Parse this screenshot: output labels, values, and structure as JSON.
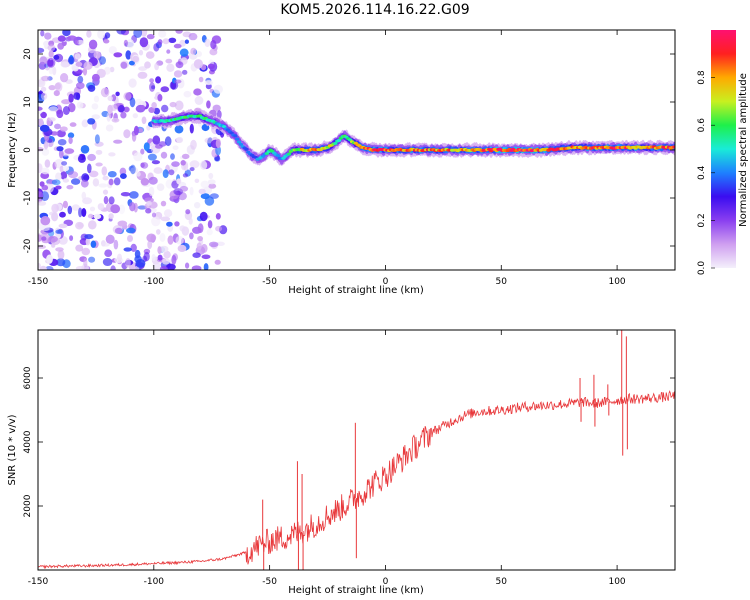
{
  "title": "KOM5.2026.114.16.22.G09",
  "colors": {
    "snr_line": "#e8383b",
    "colormap": [
      "#f4f0fb",
      "#cf9ff0",
      "#8a3ff0",
      "#3a0df0",
      "#1e80ff",
      "#19ecd8",
      "#1ef04a",
      "#c8f020",
      "#ffaa00",
      "#ff2020",
      "#ff1070"
    ]
  },
  "chart_data": [
    {
      "type": "heatmap",
      "title": "",
      "xlabel": "Height of straight line (km)",
      "ylabel": "Frequency (Hz)",
      "xlim": [
        -150,
        125
      ],
      "ylim": [
        -25,
        25
      ],
      "xticks": [
        -150,
        -100,
        -50,
        0,
        50,
        100
      ],
      "yticks": [
        -20,
        -10,
        0,
        10,
        20
      ],
      "colorbar": {
        "label": "Normalized spectral amplitude",
        "range": [
          0.0,
          1.0
        ],
        "ticks": [
          0.0,
          0.2,
          0.4,
          0.6,
          0.8
        ]
      },
      "signal_track": {
        "x": [
          -100,
          -95,
          -90,
          -85,
          -80,
          -75,
          -70,
          -65,
          -62,
          -58,
          -55,
          -52,
          -50,
          -47,
          -45,
          -42,
          -40,
          -35,
          -30,
          -25,
          -20,
          -18,
          -15,
          -10,
          -5,
          0,
          10,
          20,
          30,
          40,
          50,
          60,
          70,
          80,
          90,
          100,
          110,
          120,
          125
        ],
        "freq": [
          6,
          6,
          6.5,
          7,
          7,
          6,
          5,
          3,
          1,
          -1,
          -2,
          -1,
          0,
          -1,
          -2,
          -1,
          0,
          0,
          0,
          0.5,
          2,
          3,
          2,
          0.5,
          0,
          0,
          0,
          0,
          0,
          0,
          0,
          0,
          0,
          0.5,
          0.5,
          0.5,
          0.5,
          0.5,
          0.5
        ],
        "amplitude": [
          0.45,
          0.5,
          0.55,
          0.55,
          0.6,
          0.5,
          0.45,
          0.4,
          0.4,
          0.35,
          0.4,
          0.45,
          0.55,
          0.45,
          0.4,
          0.5,
          0.6,
          0.75,
          0.8,
          0.7,
          0.55,
          0.55,
          0.6,
          0.8,
          0.9,
          0.85,
          0.85,
          0.8,
          0.8,
          0.8,
          0.95,
          0.95,
          0.85,
          0.8,
          0.85,
          0.9,
          0.8,
          0.85,
          0.85
        ]
      },
      "noise_region": {
        "x_range": [
          -150,
          -70
        ],
        "freq_range": [
          -25,
          25
        ],
        "amplitude_range": [
          0.0,
          0.4
        ]
      }
    },
    {
      "type": "line",
      "title": "",
      "xlabel": "Height of straight line (km)",
      "ylabel": "SNR (10 * v/v)",
      "xlim": [
        -150,
        125
      ],
      "ylim": [
        0,
        7500
      ],
      "xticks": [
        -150,
        -100,
        -50,
        0,
        50,
        100
      ],
      "yticks": [
        2000,
        4000,
        6000
      ],
      "series": [
        {
          "name": "SNR",
          "x": [
            -150,
            -140,
            -130,
            -120,
            -110,
            -100,
            -90,
            -80,
            -70,
            -65,
            -60,
            -55,
            -50,
            -45,
            -40,
            -35,
            -30,
            -25,
            -20,
            -15,
            -10,
            -5,
            0,
            5,
            10,
            15,
            20,
            25,
            30,
            35,
            40,
            50,
            60,
            70,
            80,
            85,
            90,
            95,
            100,
            105,
            110,
            120,
            125
          ],
          "y": [
            100,
            120,
            130,
            150,
            170,
            200,
            230,
            270,
            350,
            450,
            550,
            750,
            900,
            1000,
            1100,
            1250,
            1450,
            1700,
            1900,
            2150,
            2400,
            2700,
            2950,
            3300,
            3650,
            4000,
            4300,
            4500,
            4700,
            4850,
            4950,
            5000,
            5100,
            5150,
            5200,
            5250,
            5200,
            5250,
            5300,
            5350,
            5350,
            5400,
            5450
          ]
        }
      ],
      "spikes": {
        "x": [
          -53,
          -38,
          -36,
          -13,
          84,
          90,
          96,
          102,
          104
        ],
        "y": [
          2200,
          3400,
          3000,
          4600,
          6000,
          6100,
          5800,
          7500,
          7300
        ]
      }
    }
  ]
}
